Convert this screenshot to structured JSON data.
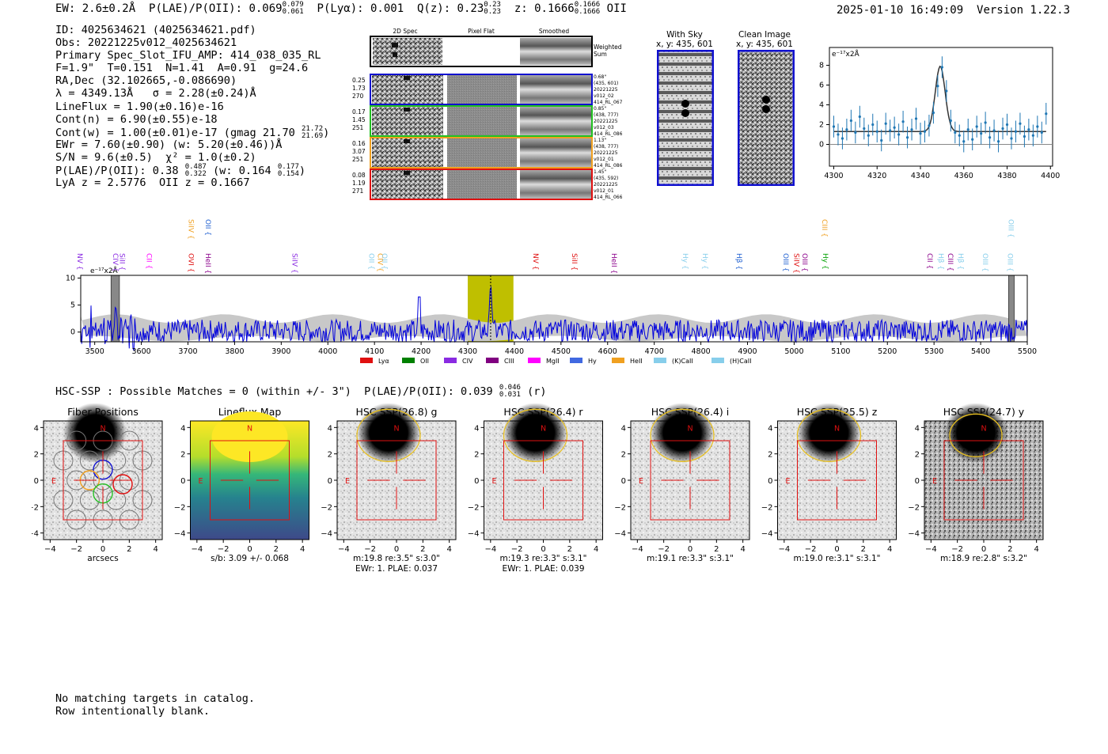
{
  "header": {
    "ew": "EW: 2.6±0.2Å",
    "plae_label": "P(LAE)/P(OII): 0.069",
    "plae_hi": "0.079",
    "plae_lo": "0.061",
    "plya": "P(Lyα): 0.001",
    "q_label": "Q(z): 0.23",
    "q_hi": "0.23",
    "q_lo": "0.23",
    "z_label": "z: 0.1666",
    "z_hi": "0.1666",
    "z_lo": "0.1666",
    "z_line": "OII",
    "timestamp": "2025-01-10 16:49:09",
    "version": "Version 1.22.3"
  },
  "info": {
    "id": "ID: 4025634621 (4025634621.pdf)",
    "obs": "Obs: 20221225v012_4025634621",
    "primary": "Primary Spec_Slot_IFU_AMP: 414_038_035_RL",
    "fitparams": "F=1.9\"  T=0.151  N=1.41  A=0.91  g=24.6",
    "radec": "RA,Dec (32.102665,-0.086690)",
    "lambda": "λ = 4349.13Å   σ = 2.28(±0.24)Å",
    "lineflux": "LineFlux = 1.90(±0.16)e-16",
    "contn": "Cont(n) = 6.90(±0.55)e-18",
    "contw": "Cont(w) = 1.00(±0.01)e-17 (gmag 21.70",
    "contw_hi": "21.72",
    "contw_lo": "21.69",
    "ewr": "EWr = 7.60(±0.90) (w: 5.20(±0.46))Å",
    "sn": "S/N = 9.6(±0.5)  χ² = 1.0(±0.2)",
    "plae": "P(LAE)/P(OII): 0.38",
    "plae_hi": "0.487",
    "plae_lo": "0.322",
    "plae_w": "(w: 0.164",
    "plae_w_hi": "0.177",
    "plae_w_lo": "0.154",
    "lya": "LyA z = 2.5776  OII z = 0.1667"
  },
  "cutouts": {
    "col_labels": [
      "2D Spec",
      "Pixel Flat",
      "Smoothed"
    ],
    "weighted_sum": "Weighted Sum",
    "rows": [
      {
        "left": [
          "0.25",
          "1.73",
          "270"
        ],
        "right": [
          "0.68\"",
          "(435, 601)",
          "20221225",
          "v012_02",
          "414_RL_067"
        ],
        "color": "#1010d0"
      },
      {
        "left": [
          "0.17",
          "1.45",
          "251"
        ],
        "right": [
          "0.85\"",
          "(438, 777)",
          "20221225",
          "v012_03",
          "414_RL_086"
        ],
        "color": "#22c022"
      },
      {
        "left": [
          "0.16",
          "3.07",
          "251"
        ],
        "right": [
          "1.13\"",
          "(438, 777)",
          "20221225",
          "v012_01",
          "414_RL_086"
        ],
        "color": "#f0a020"
      },
      {
        "left": [
          "0.08",
          "1.19",
          "271"
        ],
        "right": [
          "1.45\"",
          "(435, 592)",
          "20221225",
          "v012_01",
          "414_RL_066"
        ],
        "color": "#e01010"
      }
    ]
  },
  "sky": {
    "with_sky_title": "With Sky",
    "with_sky_coords": "x, y: 435, 601",
    "clean_title": "Clean Image",
    "clean_coords": "x, y: 435, 601"
  },
  "hsc": {
    "header": "HSC-SSP : Possible Matches = 0 (within +/- 3\")  P(LAE)/P(OII): 0.039",
    "header_hi": "0.046",
    "header_lo": "0.031",
    "header_band": "(r)",
    "compass_n": "N",
    "compass_e": "E",
    "panels": [
      {
        "title": "Fiber Positions",
        "l1": "arcsecs",
        "l2": ""
      },
      {
        "title": "Lineflux Map",
        "l1": "s/b: 3.09 +/- 0.068",
        "l2": ""
      },
      {
        "title": "HSC SSP(26.8) g",
        "l1": "m:19.8  re:3.5\"  s:3.0\"",
        "l2": "EWr: 1. PLAE: 0.037"
      },
      {
        "title": "HSC SSP(26.4) r",
        "l1": "m:19.3  re:3.3\"  s:3.1\"",
        "l2": "EWr: 1. PLAE: 0.039"
      },
      {
        "title": "HSC SSP(26.4) i",
        "l1": "m:19.1  re:3.3\"  s:3.1\"",
        "l2": ""
      },
      {
        "title": "HSC SSP(25.5) z",
        "l1": "m:19.0  re:3.1\"  s:3.1\"",
        "l2": ""
      },
      {
        "title": "HSC SSP(24.7) y",
        "l1": "m:18.9  re:2.8\"  s:3.2\"",
        "l2": ""
      }
    ]
  },
  "footer": {
    "line1": "No matching targets in catalog.",
    "line2": "Row intentionally blank."
  },
  "chart_data": [
    {
      "type": "scatter",
      "name": "emission-line-fit",
      "ylabel": "e⁻¹⁷x2Å",
      "xlim": [
        4298,
        4401
      ],
      "ylim": [
        -2.2,
        9.8
      ],
      "xticks": [
        4300,
        4320,
        4340,
        4360,
        4380,
        4400
      ],
      "yticks": [
        0,
        2,
        4,
        6,
        8
      ],
      "fit": {
        "center": 4349.13,
        "sigma": 2.28,
        "amplitude": 6.6,
        "continuum": 1.3
      },
      "points": {
        "x": [
          4300,
          4302,
          4304,
          4306,
          4308,
          4310,
          4312,
          4314,
          4316,
          4318,
          4320,
          4322,
          4324,
          4326,
          4328,
          4330,
          4332,
          4334,
          4336,
          4338,
          4340,
          4342,
          4344,
          4346,
          4348,
          4350,
          4352,
          4354,
          4356,
          4358,
          4360,
          4362,
          4364,
          4366,
          4368,
          4370,
          4372,
          4374,
          4376,
          4378,
          4380,
          4382,
          4384,
          4386,
          4388,
          4390,
          4392,
          4394,
          4396,
          4398
        ],
        "y": [
          1.8,
          1.0,
          0.6,
          1.5,
          2.4,
          1.2,
          2.8,
          1.6,
          0.9,
          2.0,
          1.3,
          0.4,
          2.1,
          1.4,
          1.7,
          1.0,
          2.3,
          0.7,
          1.5,
          2.6,
          1.1,
          1.3,
          1.9,
          3.2,
          5.9,
          7.8,
          5.4,
          2.4,
          1.2,
          0.9,
          0.3,
          1.5,
          0.5,
          1.8,
          1.1,
          2.2,
          0.7,
          1.4,
          0.3,
          1.6,
          2.0,
          0.6,
          1.3,
          2.1,
          0.8,
          1.5,
          0.9,
          1.8,
          1.2,
          3.1
        ]
      }
    },
    {
      "type": "line",
      "name": "full-spectrum",
      "ylabel": "e⁻¹⁷x2Å",
      "xlim": [
        3470,
        5500
      ],
      "ylim": [
        -1.8,
        10.5
      ],
      "xticks": [
        3500,
        3600,
        3700,
        3800,
        3900,
        4000,
        4100,
        4200,
        4300,
        4400,
        4500,
        4600,
        4700,
        4800,
        4900,
        5000,
        5100,
        5200,
        5300,
        5400,
        5500
      ],
      "yticks": [
        0,
        5,
        10
      ],
      "highlight_range": [
        4300,
        4398
      ],
      "marker_wavelength": 4349.13,
      "masked_ranges": [
        [
          3535,
          3553
        ],
        [
          5460,
          5472
        ]
      ],
      "line_labels": [
        {
          "label": "NV",
          "x": 3463,
          "color": "#8a2be2",
          "tier": 0
        },
        {
          "label": "CIV",
          "x": 3540,
          "color": "#8a2be2",
          "tier": 0
        },
        {
          "label": "SiII",
          "x": 3554,
          "color": "#8a2be2",
          "tier": 0
        },
        {
          "label": "CII",
          "x": 3612,
          "color": "#ff00ff",
          "tier": 0
        },
        {
          "label": "SiIV",
          "x": 3702,
          "color": "#f0a020",
          "tier": 1
        },
        {
          "label": "OVI",
          "x": 3702,
          "color": "#e01010",
          "tier": 0
        },
        {
          "label": "OII",
          "x": 3738,
          "color": "#1f5fd0",
          "tier": 1
        },
        {
          "label": "HeII",
          "x": 3738,
          "color": "#8b008b",
          "tier": 0
        },
        {
          "label": "SiIV",
          "x": 3924,
          "color": "#8a2be2",
          "tier": 0
        },
        {
          "label": "OII",
          "x": 4089,
          "color": "#87ceeb",
          "tier": 0
        },
        {
          "label": "CIV",
          "x": 4107,
          "color": "#f0a020",
          "tier": 0
        },
        {
          "label": "OII",
          "x": 4117,
          "color": "#87ceeb",
          "tier": 0
        },
        {
          "label": "NV",
          "x": 4441,
          "color": "#e01010",
          "tier": 0
        },
        {
          "label": "SiII",
          "x": 4524,
          "color": "#e01010",
          "tier": 0
        },
        {
          "label": "HeII",
          "x": 4609,
          "color": "#8b008b",
          "tier": 0
        },
        {
          "label": "Hy",
          "x": 4762,
          "color": "#87ceeb",
          "tier": 0
        },
        {
          "label": "Hy",
          "x": 4804,
          "color": "#87ceeb",
          "tier": 0
        },
        {
          "label": "Hβ",
          "x": 4877,
          "color": "#1f5fd0",
          "tier": 0
        },
        {
          "label": "OIII",
          "x": 4977,
          "color": "#1f5fd0",
          "tier": 0
        },
        {
          "label": "SiIV",
          "x": 5000,
          "color": "#e01010",
          "tier": 0
        },
        {
          "label": "OIII",
          "x": 5018,
          "color": "#8b008b",
          "tier": 0
        },
        {
          "label": "CIII",
          "x": 5060,
          "color": "#f0a020",
          "tier": 1
        },
        {
          "label": "Hy",
          "x": 5062,
          "color": "#00a000",
          "tier": 0
        },
        {
          "label": "CII",
          "x": 5286,
          "color": "#8b008b",
          "tier": 0
        },
        {
          "label": "Hβ",
          "x": 5310,
          "color": "#87ceeb",
          "tier": 0
        },
        {
          "label": "CIII",
          "x": 5330,
          "color": "#8b008b",
          "tier": 0
        },
        {
          "label": "Hβ",
          "x": 5352,
          "color": "#87ceeb",
          "tier": 0
        },
        {
          "label": "OIII",
          "x": 5405,
          "color": "#87ceeb",
          "tier": 0
        },
        {
          "label": "OIII",
          "x": 5460,
          "color": "#87ceeb",
          "tier": 1
        },
        {
          "label": "OIII",
          "x": 5458,
          "color": "#87ceeb",
          "tier": 0
        }
      ],
      "legend": [
        {
          "name": "Lyα",
          "color": "#e01010"
        },
        {
          "name": "OII",
          "color": "#008000"
        },
        {
          "name": "CIV",
          "color": "#8a2be2"
        },
        {
          "name": "CIII",
          "color": "#800080"
        },
        {
          "name": "MgII",
          "color": "#ff00ff"
        },
        {
          "name": "Hy",
          "color": "#4169e1"
        },
        {
          "name": "HeII",
          "color": "#f0a020"
        },
        {
          "name": "(K)CaII",
          "color": "#87ceeb"
        },
        {
          "name": "(H)CaII",
          "color": "#87ceeb"
        }
      ]
    }
  ]
}
